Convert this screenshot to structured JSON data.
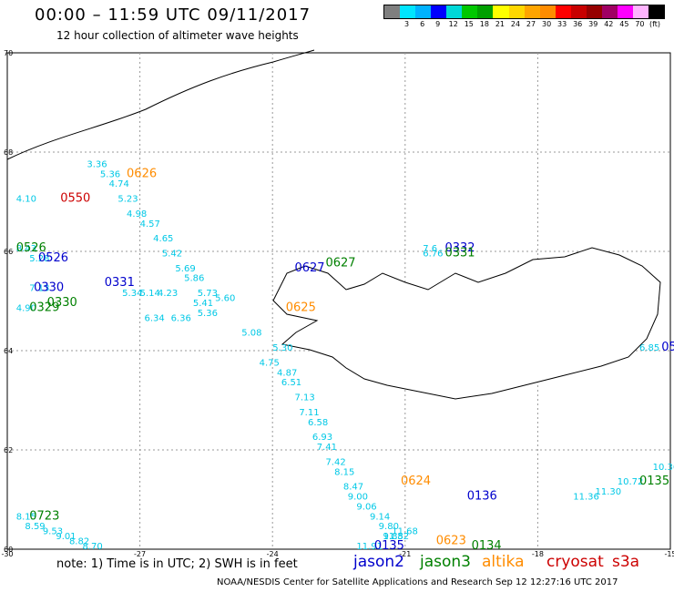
{
  "title": "00:00 – 11:59 UTC 09/11/2017",
  "subtitle": "12 hour collection of altimeter wave heights",
  "legend": {
    "unit": "(ft)",
    "colors": [
      "#7f7f7f",
      "#00e5ff",
      "#00b2ff",
      "#0000ff",
      "#00d8d8",
      "#00c800",
      "#00a000",
      "#ffff00",
      "#ffd700",
      "#ffa500",
      "#ff8c00",
      "#ff0000",
      "#c80000",
      "#960000",
      "#a00064",
      "#ff00ff",
      "#ffb4ff",
      "#000000"
    ],
    "ticks": [
      "3",
      "6",
      "9",
      "12",
      "15",
      "18",
      "21",
      "24",
      "27",
      "30",
      "33",
      "36",
      "39",
      "42",
      "45",
      "70"
    ]
  },
  "axes": {
    "lon_ticks": [
      "-30",
      "-27",
      "-24",
      "-21",
      "-18",
      "-15"
    ],
    "lat_ticks": [
      "70",
      "68",
      "66",
      "64",
      "62",
      "60"
    ]
  },
  "note": "note: 1) Time is in UTC; 2) SWH is in feet",
  "satellites": [
    {
      "name": "jason2",
      "color": "#0000cc"
    },
    {
      "name": "jason3",
      "color": "#008000"
    },
    {
      "name": "altika",
      "color": "#ff8c00"
    },
    {
      "name": "cryosat",
      "color": "#cc0000"
    },
    {
      "name": "s3a",
      "color": "#cc0000"
    }
  ],
  "credit": "NOAA/NESDIS Center for Satellite Applications and Research    Sep 12 12:27:16 UTC 2017",
  "chart_data": {
    "type": "scatter",
    "track_labels": [
      {
        "text": "0626",
        "lon": -27.3,
        "lat": 67.5,
        "sat": "altika"
      },
      {
        "text": "0550",
        "lon": -28.8,
        "lat": 67.0,
        "sat": "cryosat"
      },
      {
        "text": "0526",
        "lon": -29.8,
        "lat": 66.0,
        "sat": "jason3"
      },
      {
        "text": "0526",
        "lon": -29.3,
        "lat": 65.8,
        "sat": "jason2"
      },
      {
        "text": "0331",
        "lon": -27.8,
        "lat": 65.3,
        "sat": "jason2"
      },
      {
        "text": "0330",
        "lon": -29.4,
        "lat": 65.2,
        "sat": "jason2"
      },
      {
        "text": "0330",
        "lon": -29.1,
        "lat": 64.9,
        "sat": "jason3"
      },
      {
        "text": "0329",
        "lon": -29.5,
        "lat": 64.8,
        "sat": "jason3"
      },
      {
        "text": "0627",
        "lon": -23.5,
        "lat": 65.6,
        "sat": "jason2"
      },
      {
        "text": "0627",
        "lon": -22.8,
        "lat": 65.7,
        "sat": "jason3"
      },
      {
        "text": "0625",
        "lon": -23.7,
        "lat": 64.8,
        "sat": "altika"
      },
      {
        "text": "0332",
        "lon": -20.1,
        "lat": 66.0,
        "sat": "jason2"
      },
      {
        "text": "0331",
        "lon": -20.1,
        "lat": 65.9,
        "sat": "jason3"
      },
      {
        "text": "0723",
        "lon": -29.5,
        "lat": 60.6,
        "sat": "jason3"
      },
      {
        "text": "0624",
        "lon": -21.1,
        "lat": 61.3,
        "sat": "altika"
      },
      {
        "text": "0136",
        "lon": -19.6,
        "lat": 61.0,
        "sat": "jason2"
      },
      {
        "text": "0135",
        "lon": -21.7,
        "lat": 60.0,
        "sat": "jason2"
      },
      {
        "text": "0623",
        "lon": -20.3,
        "lat": 60.1,
        "sat": "altika"
      },
      {
        "text": "0134",
        "lon": -19.5,
        "lat": 60.0,
        "sat": "jason3"
      },
      {
        "text": "0135",
        "lon": -15.7,
        "lat": 61.3,
        "sat": "jason3"
      },
      {
        "text": "05",
        "lon": -15.2,
        "lat": 64.0,
        "sat": "jason2"
      }
    ],
    "swh_values": [
      {
        "text": "3.36",
        "lon": -28.2,
        "lat": 67.7
      },
      {
        "text": "5.36",
        "lon": -27.9,
        "lat": 67.5
      },
      {
        "text": "4.74",
        "lon": -27.7,
        "lat": 67.3
      },
      {
        "text": "4.10",
        "lon": -29.8,
        "lat": 67.0
      },
      {
        "text": "5.23",
        "lon": -27.5,
        "lat": 67.0
      },
      {
        "text": "4.98",
        "lon": -27.3,
        "lat": 66.7
      },
      {
        "text": "4.57",
        "lon": -27.0,
        "lat": 66.5
      },
      {
        "text": "4.65",
        "lon": -26.7,
        "lat": 66.2
      },
      {
        "text": "5.42",
        "lon": -26.5,
        "lat": 65.9
      },
      {
        "text": "5.69",
        "lon": -26.2,
        "lat": 65.6
      },
      {
        "text": "5.86",
        "lon": -26.0,
        "lat": 65.4
      },
      {
        "text": "5.73",
        "lon": -25.7,
        "lat": 65.1
      },
      {
        "text": "4.23",
        "lon": -26.6,
        "lat": 65.1
      },
      {
        "text": "5.34",
        "lon": -27.4,
        "lat": 65.1
      },
      {
        "text": "5.14",
        "lon": -27.0,
        "lat": 65.1
      },
      {
        "text": "5.41",
        "lon": -25.8,
        "lat": 64.9
      },
      {
        "text": "5.60",
        "lon": -25.3,
        "lat": 65.0
      },
      {
        "text": "6.34",
        "lon": -26.9,
        "lat": 64.6
      },
      {
        "text": "6.36",
        "lon": -26.3,
        "lat": 64.6
      },
      {
        "text": "5.36",
        "lon": -25.7,
        "lat": 64.7
      },
      {
        "text": "5.30",
        "lon": -24.0,
        "lat": 64.0
      },
      {
        "text": "5.08",
        "lon": -24.7,
        "lat": 64.3
      },
      {
        "text": "4.75",
        "lon": -24.3,
        "lat": 63.7
      },
      {
        "text": "4.87",
        "lon": -23.9,
        "lat": 63.5
      },
      {
        "text": "6.51",
        "lon": -23.8,
        "lat": 63.3
      },
      {
        "text": "7.13",
        "lon": -23.5,
        "lat": 63.0
      },
      {
        "text": "7.11",
        "lon": -23.4,
        "lat": 62.7
      },
      {
        "text": "6.58",
        "lon": -23.2,
        "lat": 62.5
      },
      {
        "text": "6.93",
        "lon": -23.1,
        "lat": 62.2
      },
      {
        "text": "7.41",
        "lon": -23.0,
        "lat": 62.0
      },
      {
        "text": "7.42",
        "lon": -22.8,
        "lat": 61.7
      },
      {
        "text": "8.15",
        "lon": -22.6,
        "lat": 61.5
      },
      {
        "text": "8.47",
        "lon": -22.4,
        "lat": 61.2
      },
      {
        "text": "9.00",
        "lon": -22.3,
        "lat": 61.0
      },
      {
        "text": "9.06",
        "lon": -22.1,
        "lat": 60.8
      },
      {
        "text": "9.14",
        "lon": -21.8,
        "lat": 60.6
      },
      {
        "text": "9.80",
        "lon": -21.6,
        "lat": 60.4
      },
      {
        "text": "9.88",
        "lon": -21.5,
        "lat": 60.2
      },
      {
        "text": "7.13",
        "lon": -29.5,
        "lat": 65.2
      },
      {
        "text": "4.90",
        "lon": -29.8,
        "lat": 64.8
      },
      {
        "text": "5.28",
        "lon": -29.5,
        "lat": 65.8
      },
      {
        "text": "8.43",
        "lon": -29.8,
        "lat": 66.0
      },
      {
        "text": "6.85",
        "lon": -15.7,
        "lat": 64.0
      },
      {
        "text": "6.76",
        "lon": -20.6,
        "lat": 65.9
      },
      {
        "text": "7.6",
        "lon": -20.6,
        "lat": 66.0
      },
      {
        "text": "8.15",
        "lon": -29.8,
        "lat": 60.6
      },
      {
        "text": "8.59",
        "lon": -29.6,
        "lat": 60.4
      },
      {
        "text": "9.53",
        "lon": -29.2,
        "lat": 60.3
      },
      {
        "text": "9.01",
        "lon": -28.9,
        "lat": 60.2
      },
      {
        "text": "8.82",
        "lon": -28.6,
        "lat": 60.1
      },
      {
        "text": "8.70",
        "lon": -28.3,
        "lat": 60.0
      },
      {
        "text": "11.91",
        "lon": -22.1,
        "lat": 60.0
      },
      {
        "text": "11.52",
        "lon": -21.5,
        "lat": 60.2
      },
      {
        "text": "11.68",
        "lon": -21.3,
        "lat": 60.3
      },
      {
        "text": "10.72",
        "lon": -16.2,
        "lat": 61.3
      },
      {
        "text": "11.30",
        "lon": -16.7,
        "lat": 61.1
      },
      {
        "text": "11.36",
        "lon": -17.2,
        "lat": 61.0
      },
      {
        "text": "10.36",
        "lon": -15.4,
        "lat": 61.6
      }
    ],
    "axis_lon": [
      -30,
      -15
    ],
    "axis_lat": [
      60,
      70
    ],
    "grid": true
  }
}
